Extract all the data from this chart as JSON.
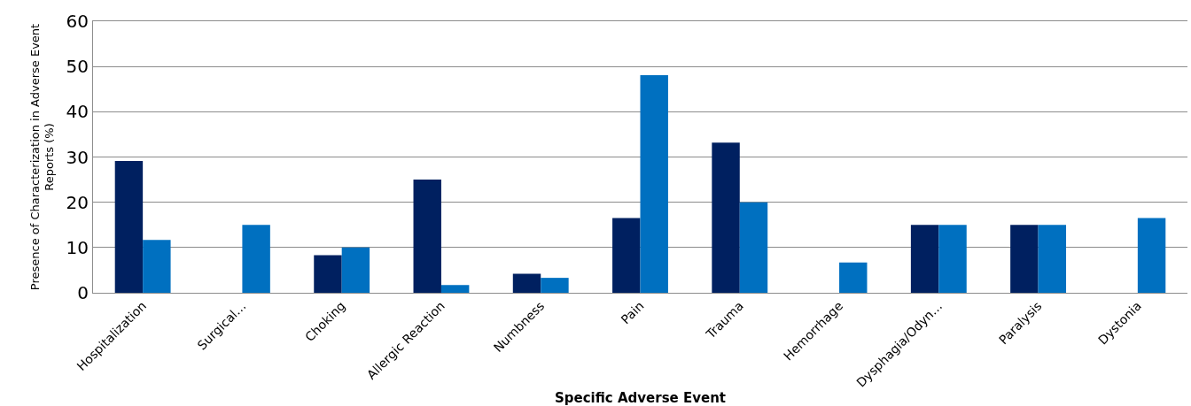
{
  "chart_data": {
    "type": "bar",
    "xlabel": "Specific Adverse Event",
    "ylabel": "Presence of Characterization in Adverse Event Reports (%)",
    "categories": [
      "Hospitalization",
      "Surgical…",
      "Choking",
      "Allergic Reaction",
      "Numbness",
      "Pain",
      "Trauma",
      "Hemorrhage",
      "Dysphagia/Odyn…",
      "Paralysis",
      "Dystonia"
    ],
    "series": [
      {
        "color": "#002060",
        "values": [
          29.1,
          null,
          8.3,
          25.0,
          4.2,
          16.5,
          33.2,
          null,
          15.0,
          15.0,
          null
        ]
      },
      {
        "color": "#0070c0",
        "values": [
          11.7,
          15.0,
          10.0,
          1.7,
          3.3,
          48.1,
          20.0,
          6.7,
          15.0,
          15.0,
          16.5
        ]
      }
    ],
    "ylim": [
      0,
      60
    ],
    "yticks": [
      0,
      10,
      20,
      30,
      40,
      50,
      60
    ],
    "grid": "y"
  }
}
